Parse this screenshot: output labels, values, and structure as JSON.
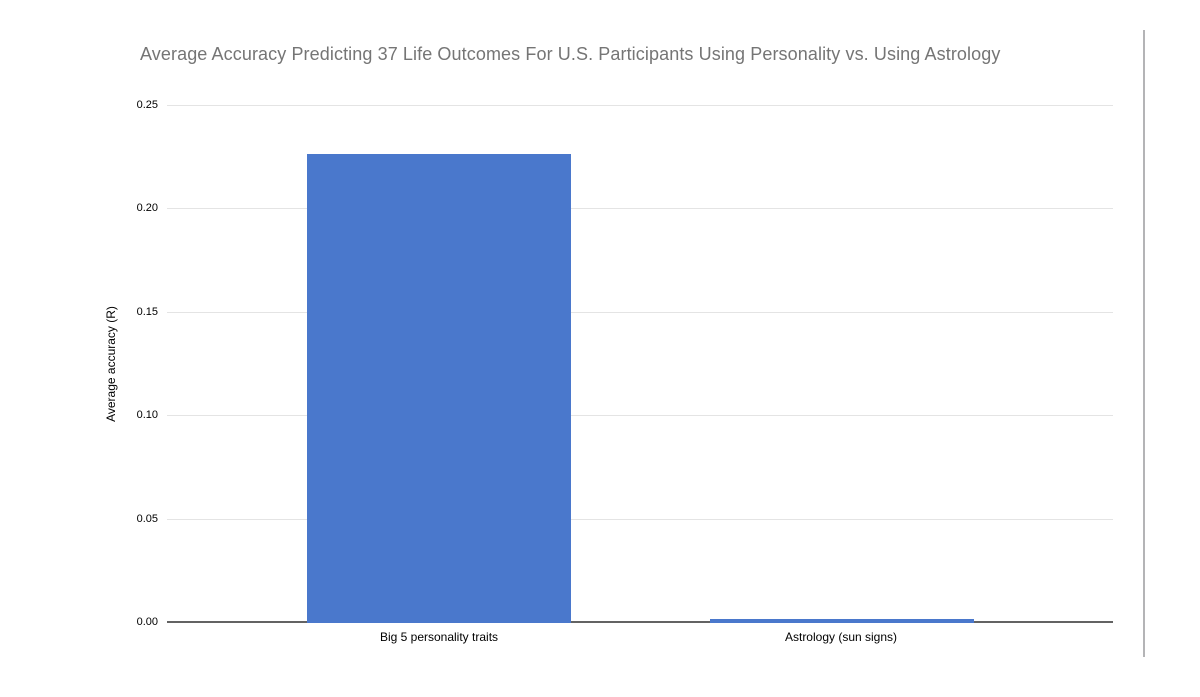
{
  "page": {
    "background": "#ffffff"
  },
  "chart_data": {
    "type": "bar",
    "title": "Average Accuracy Predicting 37 Life Outcomes For U.S. Participants Using Personality vs. Using Astrology",
    "categories": [
      "Big 5 personality traits",
      "Astrology (sun signs)"
    ],
    "values": [
      0.227,
      0.002
    ],
    "xlabel": "",
    "ylabel": "Average accuracy (R)",
    "ylim": [
      0,
      0.25
    ],
    "yticks": [
      "0.00",
      "0.05",
      "0.10",
      "0.15",
      "0.20",
      "0.25"
    ],
    "grid": true,
    "legend": "none",
    "colors": {
      "bar": "#4a78cc",
      "gridline": "#e4e4e4",
      "axis_line": "#636363",
      "title": "#757575",
      "tick_label": "#000000",
      "category_label": "#000000"
    },
    "layout": {
      "bar_center_fracs": [
        0.287,
        0.713
      ],
      "bar_width_frac": 0.279,
      "legend_position": "none"
    }
  }
}
